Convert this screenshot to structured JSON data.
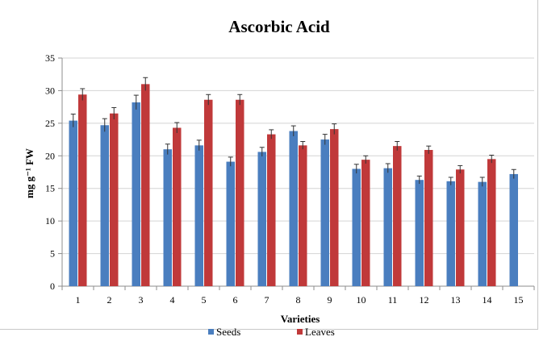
{
  "chart_data": {
    "type": "bar",
    "title": "Ascorbic Acid",
    "xlabel": "Varieties",
    "ylabel": "mg g⁻¹ FW",
    "ylim": [
      0,
      35
    ],
    "yticks": [
      0,
      5,
      10,
      15,
      20,
      25,
      30,
      35
    ],
    "categories": [
      "1",
      "2",
      "3",
      "4",
      "5",
      "6",
      "7",
      "8",
      "9",
      "10",
      "11",
      "12",
      "13",
      "14",
      "15"
    ],
    "grid": true,
    "legend_position": "bottom",
    "series": [
      {
        "name": "Seeds",
        "color": "#4a7ebf",
        "values": [
          25.4,
          24.7,
          28.2,
          21.0,
          21.6,
          19.1,
          20.6,
          23.8,
          22.5,
          18.0,
          18.1,
          16.3,
          16.1,
          16.0,
          17.2
        ],
        "errors": [
          1.0,
          1.0,
          1.1,
          0.8,
          0.8,
          0.7,
          0.7,
          0.8,
          0.8,
          0.7,
          0.7,
          0.6,
          0.6,
          0.7,
          0.7
        ]
      },
      {
        "name": "Leaves",
        "color": "#c0393a",
        "values": [
          29.4,
          26.5,
          31.0,
          24.3,
          28.6,
          28.6,
          23.3,
          21.6,
          24.1,
          19.4,
          21.5,
          20.9,
          17.9,
          19.5,
          null
        ],
        "errors": [
          0.9,
          0.9,
          1.0,
          0.8,
          0.8,
          0.8,
          0.7,
          0.6,
          0.8,
          0.6,
          0.7,
          0.6,
          0.6,
          0.6,
          null
        ]
      }
    ]
  }
}
